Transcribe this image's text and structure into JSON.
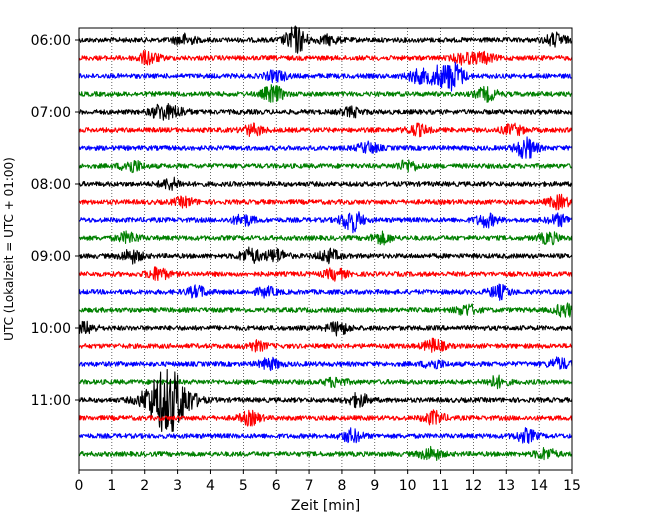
{
  "chart_data": {
    "type": "line",
    "title": "",
    "xlabel": "Zeit  [min]",
    "ylabel": "UTC (Lokalzeit = UTC + 01:00)",
    "xlim": [
      0,
      15
    ],
    "x_ticks": [
      0,
      1,
      2,
      3,
      4,
      5,
      6,
      7,
      8,
      9,
      10,
      11,
      12,
      13,
      14,
      15
    ],
    "x_tick_labels": [
      "0",
      "1",
      "2",
      "3",
      "4",
      "5",
      "6",
      "7",
      "8",
      "9",
      "10",
      "11",
      "12",
      "13",
      "14",
      "15"
    ],
    "y_tick_labels": [
      "06:00",
      "07:00",
      "08:00",
      "09:00",
      "10:00",
      "11:00"
    ],
    "traces_per_hour": 4,
    "minutes_per_trace": 15,
    "start_time": "06:00",
    "trace_colors": [
      "#000000",
      "#ff0000",
      "#0000ff",
      "#008000"
    ],
    "grid": "vertical-dotted",
    "traces": [
      {
        "start": "06:00",
        "events": [
          {
            "t": 3.2,
            "a": 5
          },
          {
            "t": 6.6,
            "a": 13
          },
          {
            "t": 7.6,
            "a": 4
          },
          {
            "t": 14.5,
            "a": 6
          }
        ]
      },
      {
        "start": "06:15",
        "events": [
          {
            "t": 2.1,
            "a": 6
          },
          {
            "t": 11.7,
            "a": 5
          },
          {
            "t": 12.3,
            "a": 5
          }
        ]
      },
      {
        "start": "06:30",
        "events": [
          {
            "t": 6.0,
            "a": 5
          },
          {
            "t": 10.3,
            "a": 6
          },
          {
            "t": 10.9,
            "a": 8
          },
          {
            "t": 11.4,
            "a": 13
          }
        ]
      },
      {
        "start": "06:45",
        "events": [
          {
            "t": 5.9,
            "a": 8
          },
          {
            "t": 12.4,
            "a": 6
          }
        ]
      },
      {
        "start": "07:00",
        "events": [
          {
            "t": 2.5,
            "a": 7
          },
          {
            "t": 3.0,
            "a": 4
          },
          {
            "t": 8.3,
            "a": 4
          }
        ]
      },
      {
        "start": "07:15",
        "events": [
          {
            "t": 5.3,
            "a": 5
          },
          {
            "t": 10.3,
            "a": 5
          },
          {
            "t": 13.2,
            "a": 5
          }
        ]
      },
      {
        "start": "07:30",
        "events": [
          {
            "t": 8.8,
            "a": 5
          },
          {
            "t": 13.6,
            "a": 10
          }
        ]
      },
      {
        "start": "07:45",
        "events": [
          {
            "t": 1.6,
            "a": 6
          },
          {
            "t": 10.0,
            "a": 5
          }
        ]
      },
      {
        "start": "08:00",
        "events": [
          {
            "t": 2.8,
            "a": 5
          }
        ]
      },
      {
        "start": "08:15",
        "events": [
          {
            "t": 3.2,
            "a": 4
          },
          {
            "t": 14.6,
            "a": 6
          }
        ]
      },
      {
        "start": "08:30",
        "events": [
          {
            "t": 5.0,
            "a": 5
          },
          {
            "t": 8.3,
            "a": 11
          },
          {
            "t": 12.4,
            "a": 6
          },
          {
            "t": 14.6,
            "a": 5
          }
        ]
      },
      {
        "start": "08:45",
        "events": [
          {
            "t": 1.5,
            "a": 5
          },
          {
            "t": 9.2,
            "a": 5
          },
          {
            "t": 14.3,
            "a": 5
          }
        ]
      },
      {
        "start": "09:00",
        "events": [
          {
            "t": 1.6,
            "a": 6
          },
          {
            "t": 5.2,
            "a": 7
          },
          {
            "t": 6.0,
            "a": 6
          },
          {
            "t": 7.6,
            "a": 6
          }
        ]
      },
      {
        "start": "09:15",
        "events": [
          {
            "t": 2.4,
            "a": 6
          },
          {
            "t": 7.8,
            "a": 5
          }
        ]
      },
      {
        "start": "09:30",
        "events": [
          {
            "t": 3.6,
            "a": 5
          },
          {
            "t": 5.7,
            "a": 4
          },
          {
            "t": 12.8,
            "a": 6
          }
        ]
      },
      {
        "start": "09:45",
        "events": [
          {
            "t": 11.8,
            "a": 5
          },
          {
            "t": 14.8,
            "a": 6
          }
        ]
      },
      {
        "start": "10:00",
        "events": [
          {
            "t": 0.2,
            "a": 5
          },
          {
            "t": 7.9,
            "a": 6
          }
        ]
      },
      {
        "start": "10:15",
        "events": [
          {
            "t": 5.4,
            "a": 4
          },
          {
            "t": 10.8,
            "a": 6
          }
        ]
      },
      {
        "start": "10:30",
        "events": [
          {
            "t": 5.8,
            "a": 5
          },
          {
            "t": 10.8,
            "a": 4
          },
          {
            "t": 14.6,
            "a": 5
          }
        ]
      },
      {
        "start": "10:45",
        "events": [
          {
            "t": 7.8,
            "a": 4
          },
          {
            "t": 12.7,
            "a": 5
          }
        ]
      },
      {
        "start": "11:00",
        "events": [
          {
            "t": 2.7,
            "a": 32
          },
          {
            "t": 8.5,
            "a": 6
          }
        ]
      },
      {
        "start": "11:15",
        "events": [
          {
            "t": 5.2,
            "a": 6
          },
          {
            "t": 10.8,
            "a": 6
          }
        ]
      },
      {
        "start": "11:30",
        "events": [
          {
            "t": 8.3,
            "a": 6
          },
          {
            "t": 13.6,
            "a": 6
          }
        ]
      },
      {
        "start": "11:45",
        "events": [
          {
            "t": 10.7,
            "a": 6
          },
          {
            "t": 14.2,
            "a": 5
          }
        ]
      }
    ]
  }
}
